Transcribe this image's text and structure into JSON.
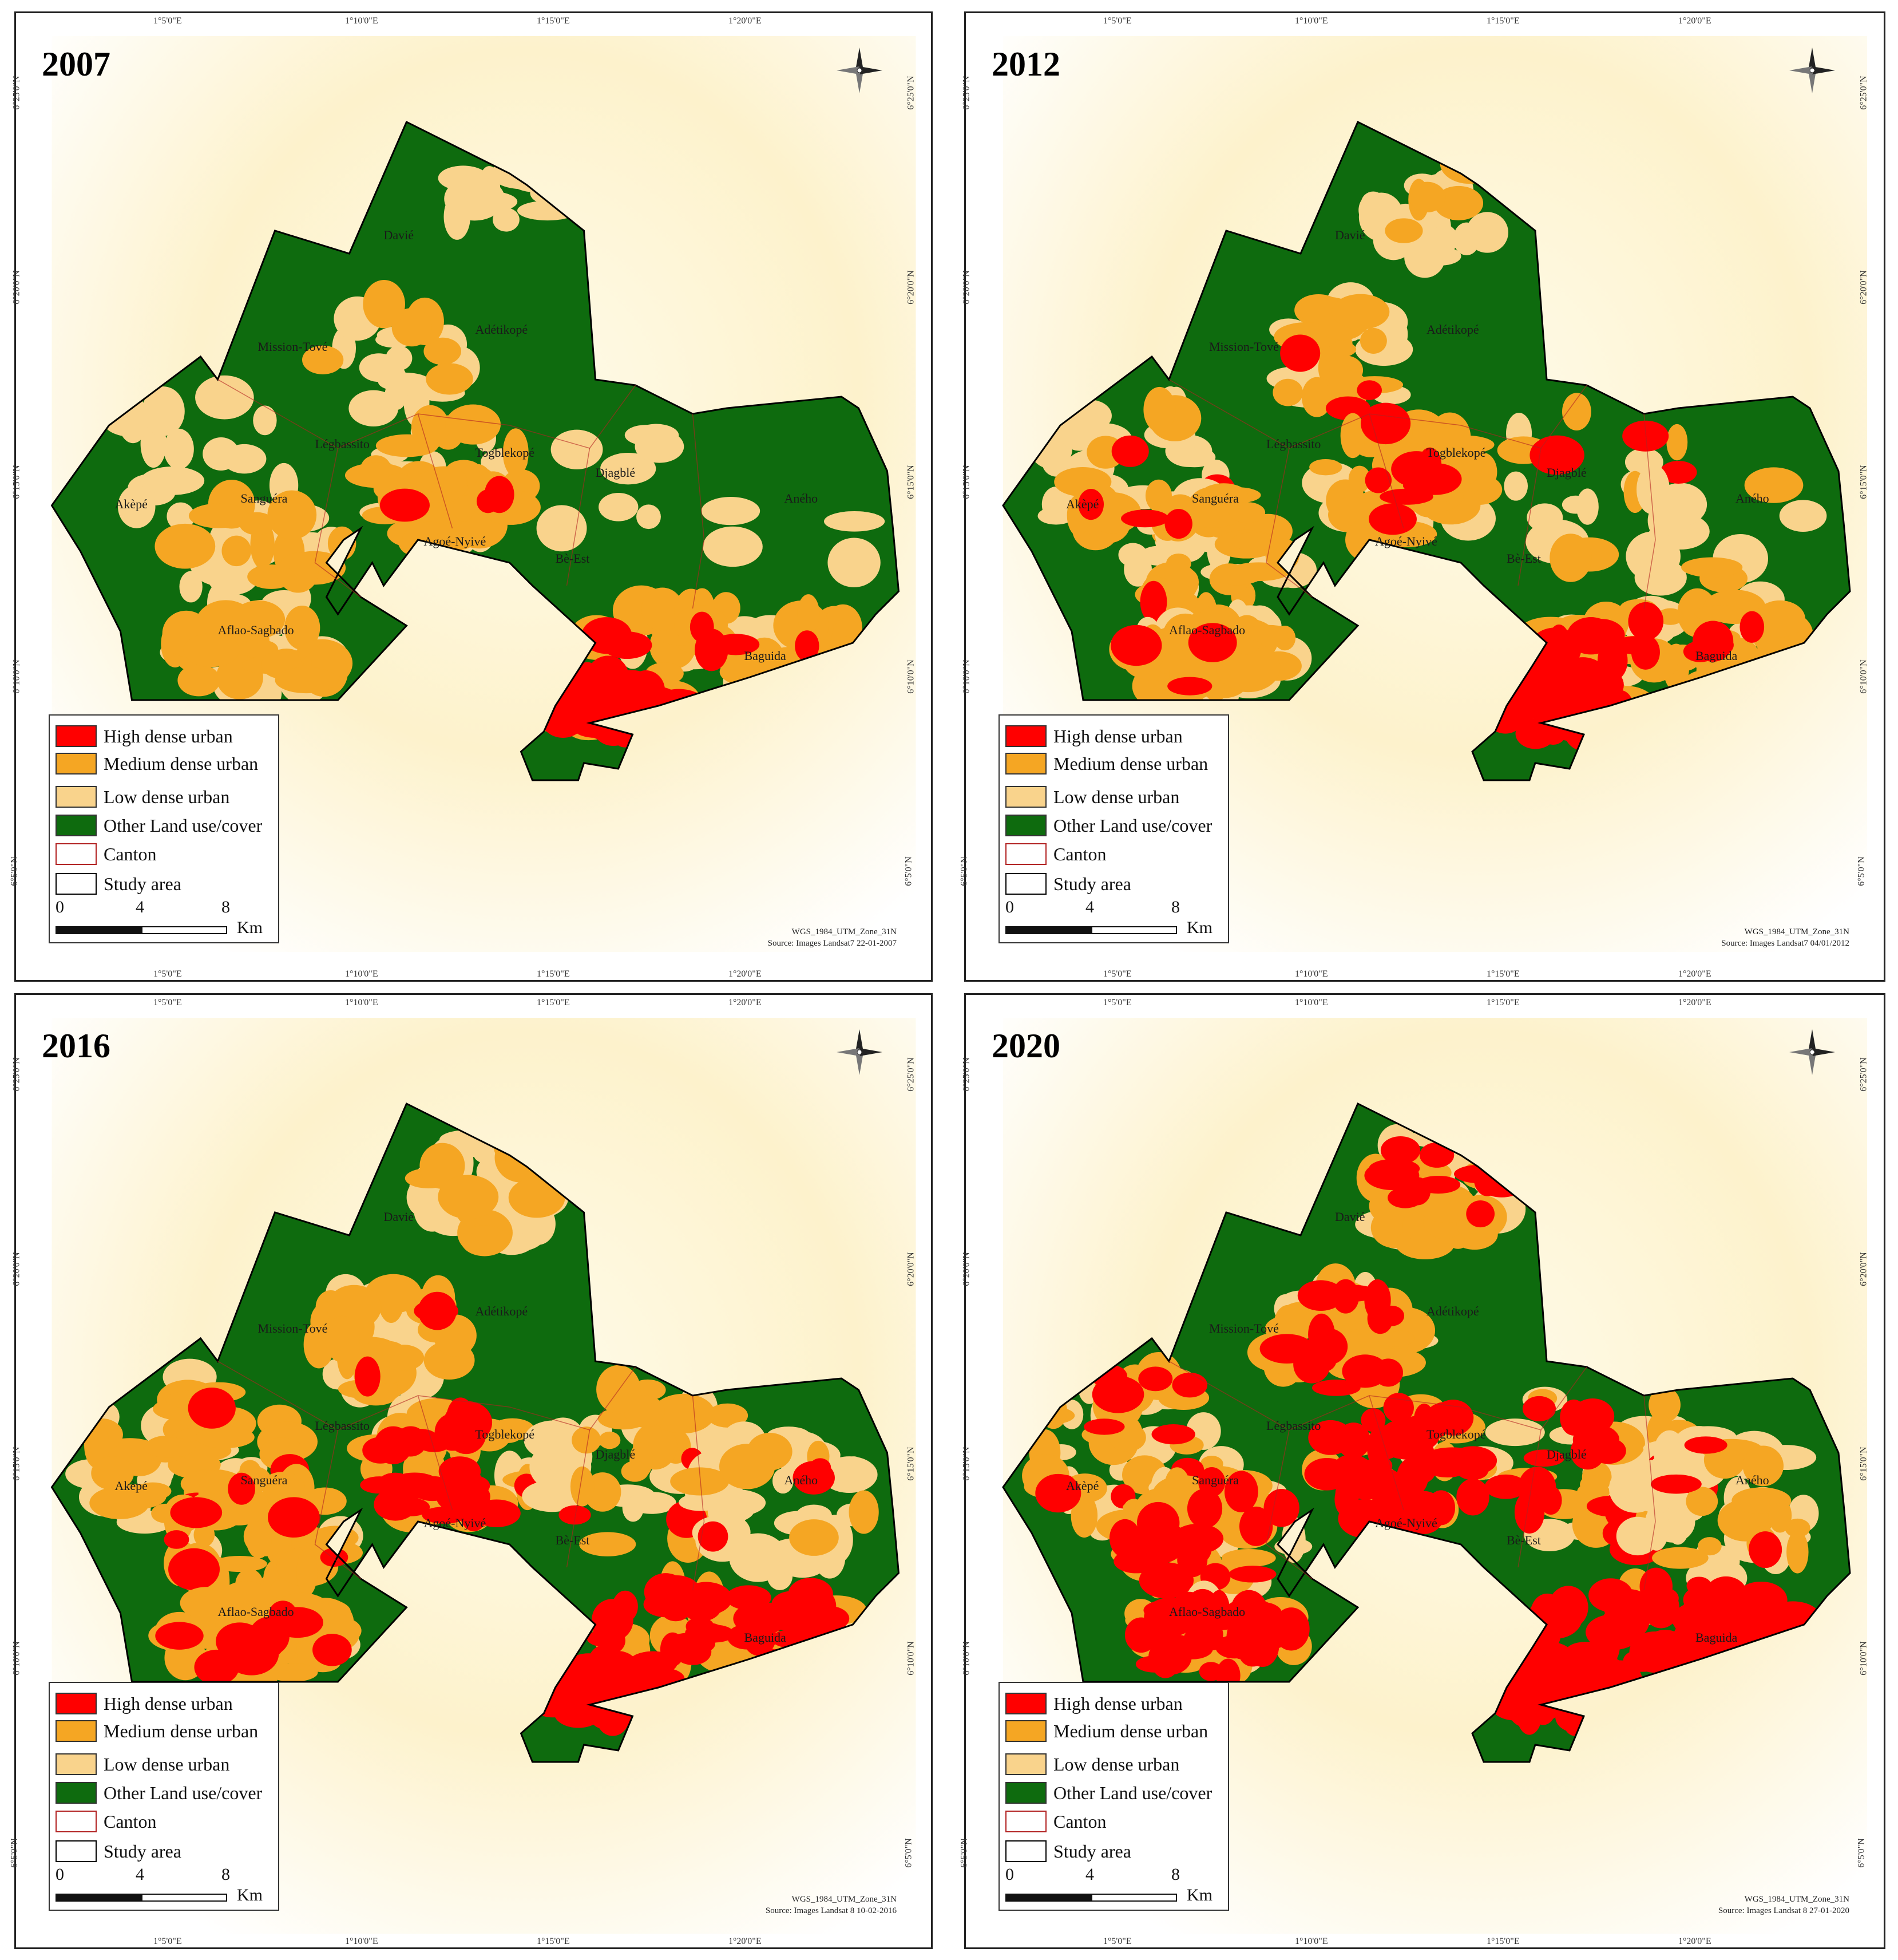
{
  "legend": {
    "items": [
      {
        "label": "High dense urban",
        "color": "#ff0000",
        "kind": "fill"
      },
      {
        "label": "Medium dense urban",
        "color": "#f5a623",
        "kind": "fill"
      },
      {
        "label": "Low dense urban",
        "color": "#f9d38c",
        "kind": "fill"
      },
      {
        "label": "Other Land use/cover",
        "color": "#0e6b0e",
        "kind": "fill"
      },
      {
        "label": "Canton",
        "color": "#b22222",
        "kind": "outline"
      },
      {
        "label": "Study area",
        "color": "#000000",
        "kind": "outline"
      }
    ],
    "scale": {
      "ticks": [
        "0",
        "4",
        "8"
      ],
      "unit": "Km"
    }
  },
  "axes": {
    "x_ticks": [
      "1°5'0\"E",
      "1°10'0\"E",
      "1°15'0\"E",
      "1°20'0\"E"
    ],
    "y_ticks": [
      "6°25'0\"N",
      "6°20'0\"N",
      "6°15'0\"N",
      "6°10'0\"N",
      "6°5'0\"N"
    ]
  },
  "projection": "WGS_1984_UTM_Zone_31N",
  "places": {
    "davie": "Davié",
    "mission_tove": "Mission-Tové",
    "legbassito": "Légbassito",
    "adetikope": "Adétikopé",
    "tokoin": "Togblekopé",
    "sanguera": "Sanguéra",
    "akepe": "Akèpé",
    "agoe_nyive": "Agoé-Nyivé",
    "djagble": "Djagblé",
    "be_est": "Bè-Est",
    "aflao_sagbado": "Aflao-Sagbado",
    "baguida": "Baguida",
    "aneho": "Aného"
  },
  "panels": [
    {
      "year": "2007",
      "source": "Source: Images Landsat7 22-01-2007"
    },
    {
      "year": "2012",
      "source": "Source: Images Landsat7 04/01/2012"
    },
    {
      "year": "2016",
      "source": "Source: Images Landsat 8 10-02-2016"
    },
    {
      "year": "2020",
      "source": "Source: Images Landsat 8 27-01-2020"
    }
  ]
}
